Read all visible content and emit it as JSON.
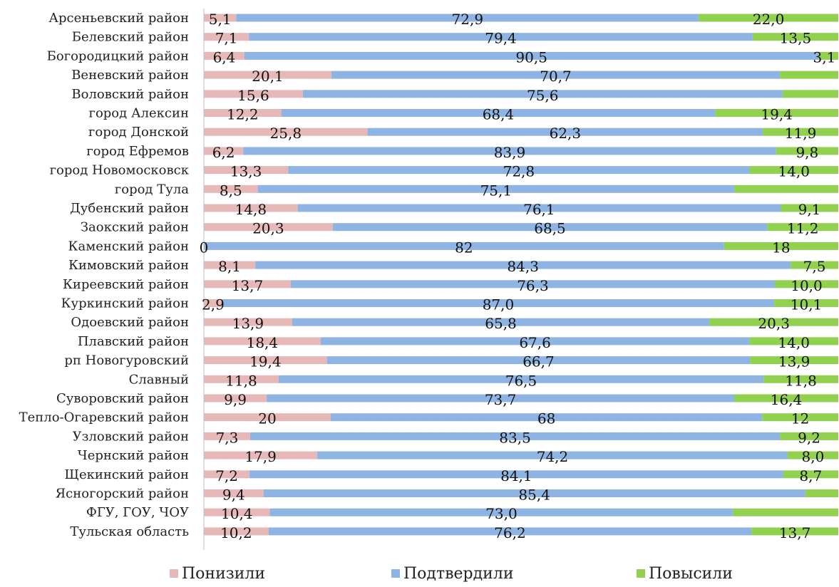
{
  "chart_data": {
    "type": "bar",
    "orientation": "horizontal",
    "stacked": "percent",
    "categories": [
      "Арсеньевский район",
      "Белевский район",
      "Богородицкий район",
      "Веневский район",
      "Воловский район",
      "город Алексин",
      "город Донской",
      "город Ефремов",
      "город Новомосковск",
      "город Тула",
      "Дубенский район",
      "Заокский район",
      "Каменский район",
      "Кимовский район",
      "Киреевский район",
      "Куркинский район",
      "Одоевский район",
      "Плавский район",
      "рп Новогуровский",
      "Славный",
      "Суворовский район",
      "Тепло-Огаревский район",
      "Узловский район",
      "Чернский район",
      "Щекинский район",
      "Ясногорский район",
      "ФГУ, ГОУ, ЧОУ",
      "Тульская область"
    ],
    "series": [
      {
        "name": "Понизили",
        "color": "#E6B9B8",
        "values": [
          5.1,
          7.1,
          6.4,
          20.1,
          15.6,
          12.2,
          25.8,
          6.2,
          13.3,
          8.5,
          14.8,
          20.3,
          0,
          8.1,
          13.7,
          2.9,
          13.9,
          18.4,
          19.4,
          11.8,
          9.9,
          20,
          7.3,
          17.9,
          7.2,
          9.4,
          10.4,
          10.2
        ],
        "labels": [
          "5,1",
          "7,1",
          "6,4",
          "20,1",
          "15,6",
          "12,2",
          "25,8",
          "6,2",
          "13,3",
          "8,5",
          "14,8",
          "20,3",
          "0",
          "8,1",
          "13,7",
          "2,9",
          "13,9",
          "18,4",
          "19,4",
          "11,8",
          "9,9",
          "20",
          "7,3",
          "17,9",
          "7,2",
          "9,4",
          "10,4",
          "10,2"
        ]
      },
      {
        "name": "Подтвердили",
        "color": "#8EB4E3",
        "values": [
          72.9,
          79.4,
          90.5,
          70.7,
          75.6,
          68.4,
          62.3,
          83.9,
          72.8,
          75.1,
          76.1,
          68.5,
          82,
          84.3,
          76.3,
          87.0,
          65.8,
          67.6,
          66.7,
          76.5,
          73.7,
          68,
          83.5,
          74.2,
          84.1,
          85.4,
          73.0,
          76.2
        ],
        "labels": [
          "72,9",
          "79,4",
          "90,5",
          "70,7",
          "75,6",
          "68,4",
          "62,3",
          "83,9",
          "72,8",
          "75,1",
          "76,1",
          "68,5",
          "82",
          "84,3",
          "76,3",
          "87,0",
          "65,8",
          "67,6",
          "66,7",
          "76,5",
          "73,7",
          "68",
          "83,5",
          "74,2",
          "84,1",
          "85,4",
          "73,0",
          "76,2"
        ]
      },
      {
        "name": "Повысили",
        "color": "#92D050",
        "values": [
          22.0,
          13.5,
          3.1,
          9.2,
          8.8,
          19.4,
          11.9,
          9.8,
          14.0,
          16.4,
          9.1,
          11.2,
          18,
          7.5,
          10.0,
          10.1,
          20.3,
          14.0,
          13.9,
          11.8,
          16.4,
          12,
          9.2,
          8.0,
          8.7,
          5.2,
          16.6,
          13.7
        ],
        "labels": [
          "22,0",
          "13,5",
          "3,1",
          "",
          "",
          "19,4",
          "11,9",
          "9,8",
          "14,0",
          "",
          "9,1",
          "11,2",
          "18",
          "7,5",
          "10,0",
          "10,1",
          "20,3",
          "14,0",
          "13,9",
          "11,8",
          "16,4",
          "12",
          "9,2",
          "8,0",
          "8,7",
          "",
          "",
          "13,7"
        ]
      }
    ],
    "xlim": [
      0,
      100
    ],
    "legend_position": "bottom",
    "grid": false
  }
}
